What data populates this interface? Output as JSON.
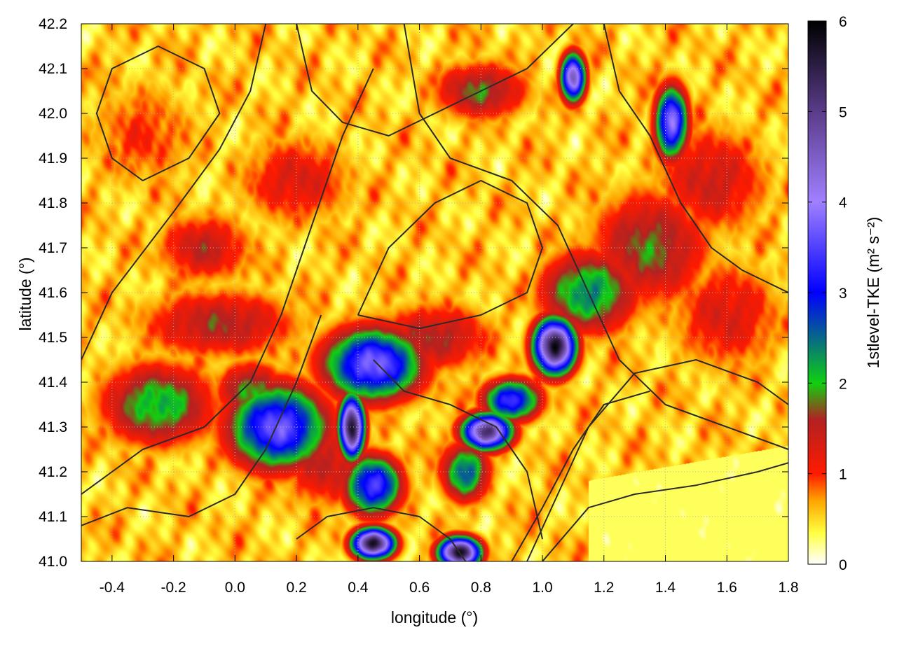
{
  "chart_data": {
    "type": "heatmap",
    "xlabel": "longitude (°)",
    "ylabel": "latitude (°)",
    "colorbar_label": "1stlevel-TKE (m² s⁻²)",
    "xlim": [
      -0.5,
      1.8
    ],
    "ylim": [
      41.0,
      42.2
    ],
    "zlim": [
      0,
      6
    ],
    "x_ticks": [
      "-0.4",
      "-0.2",
      "0.0",
      "0.2",
      "0.4",
      "0.6",
      "0.8",
      "1.0",
      "1.2",
      "1.4",
      "1.6",
      "1.8"
    ],
    "y_ticks": [
      "41.0",
      "41.1",
      "41.2",
      "41.3",
      "41.4",
      "41.5",
      "41.6",
      "41.7",
      "41.8",
      "41.9",
      "42.0",
      "42.1",
      "42.2"
    ],
    "colorbar_ticks": [
      "0",
      "1",
      "2",
      "3",
      "4",
      "5",
      "6"
    ],
    "grid": "dotted",
    "colormap": [
      {
        "value": 0.0,
        "color": "#ffffff"
      },
      {
        "value": 0.35,
        "color": "#ffff40"
      },
      {
        "value": 0.7,
        "color": "#ffa500"
      },
      {
        "value": 1.0,
        "color": "#ff1a00"
      },
      {
        "value": 1.6,
        "color": "#b22222"
      },
      {
        "value": 2.0,
        "color": "#10d010"
      },
      {
        "value": 3.0,
        "color": "#0000ff"
      },
      {
        "value": 4.0,
        "color": "#a080ff"
      },
      {
        "value": 5.0,
        "color": "#5a3c8a"
      },
      {
        "value": 6.0,
        "color": "#000000"
      }
    ],
    "features": [
      {
        "lon": 0.14,
        "lat": 41.3,
        "tke": 3.7,
        "sx": 0.12,
        "sy": 0.07
      },
      {
        "lon": 0.45,
        "lat": 41.44,
        "tke": 3.8,
        "sx": 0.12,
        "sy": 0.06
      },
      {
        "lon": 0.38,
        "lat": 41.3,
        "tke": 5.8,
        "sx": 0.03,
        "sy": 0.05
      },
      {
        "lon": 0.45,
        "lat": 41.17,
        "tke": 3.5,
        "sx": 0.07,
        "sy": 0.05
      },
      {
        "lon": 0.45,
        "lat": 41.04,
        "tke": 5.8,
        "sx": 0.05,
        "sy": 0.025
      },
      {
        "lon": 0.73,
        "lat": 41.02,
        "tke": 5.8,
        "sx": 0.05,
        "sy": 0.025
      },
      {
        "lon": 0.82,
        "lat": 41.29,
        "tke": 5.2,
        "sx": 0.06,
        "sy": 0.03
      },
      {
        "lon": 0.9,
        "lat": 41.36,
        "tke": 3.4,
        "sx": 0.07,
        "sy": 0.035
      },
      {
        "lon": 1.04,
        "lat": 41.48,
        "tke": 5.8,
        "sx": 0.05,
        "sy": 0.045
      },
      {
        "lon": 1.15,
        "lat": 41.6,
        "tke": 2.4,
        "sx": 0.12,
        "sy": 0.07
      },
      {
        "lon": 1.1,
        "lat": 42.08,
        "tke": 4.5,
        "sx": 0.03,
        "sy": 0.04
      },
      {
        "lon": 1.42,
        "lat": 41.98,
        "tke": 3.9,
        "sx": 0.04,
        "sy": 0.06
      },
      {
        "lon": -0.25,
        "lat": 41.35,
        "tke": 2.2,
        "sx": 0.14,
        "sy": 0.07
      },
      {
        "lon": 0.05,
        "lat": 41.38,
        "tke": 2.0,
        "sx": 0.08,
        "sy": 0.05
      },
      {
        "lon": 0.75,
        "lat": 41.2,
        "tke": 2.6,
        "sx": 0.06,
        "sy": 0.05
      },
      {
        "lon": -0.1,
        "lat": 41.7,
        "tke": 1.5,
        "sx": 0.12,
        "sy": 0.06
      },
      {
        "lon": -0.05,
        "lat": 41.53,
        "tke": 1.6,
        "sx": 0.2,
        "sy": 0.06
      },
      {
        "lon": 1.35,
        "lat": 41.7,
        "tke": 1.8,
        "sx": 0.15,
        "sy": 0.1
      },
      {
        "lon": 0.2,
        "lat": 41.85,
        "tke": 1.3,
        "sx": 0.15,
        "sy": 0.08
      },
      {
        "lon": 0.65,
        "lat": 41.5,
        "tke": 1.6,
        "sx": 0.15,
        "sy": 0.06
      },
      {
        "lon": 0.3,
        "lat": 41.22,
        "tke": 1.5,
        "sx": 0.12,
        "sy": 0.08
      },
      {
        "lon": 1.6,
        "lat": 41.55,
        "tke": 1.3,
        "sx": 0.15,
        "sy": 0.1
      },
      {
        "lon": 1.55,
        "lat": 41.85,
        "tke": 1.4,
        "sx": 0.15,
        "sy": 0.1
      },
      {
        "lon": 0.8,
        "lat": 42.05,
        "tke": 1.8,
        "sx": 0.12,
        "sy": 0.05
      },
      {
        "lon": -0.3,
        "lat": 41.95,
        "tke": 1.0,
        "sx": 0.15,
        "sy": 0.1
      }
    ],
    "contours": [
      [
        [
          -0.5,
          41.45
        ],
        [
          -0.4,
          41.6
        ],
        [
          -0.2,
          41.78
        ],
        [
          -0.05,
          41.92
        ],
        [
          0.05,
          42.05
        ],
        [
          0.1,
          42.2
        ]
      ],
      [
        [
          -0.5,
          41.15
        ],
        [
          -0.3,
          41.25
        ],
        [
          -0.1,
          41.3
        ],
        [
          0.05,
          41.4
        ],
        [
          0.15,
          41.55
        ],
        [
          0.25,
          41.75
        ],
        [
          0.35,
          41.95
        ],
        [
          0.45,
          42.1
        ]
      ],
      [
        [
          -0.5,
          41.08
        ],
        [
          -0.35,
          41.12
        ],
        [
          -0.15,
          41.1
        ],
        [
          0.0,
          41.15
        ],
        [
          0.1,
          41.25
        ],
        [
          0.2,
          41.4
        ],
        [
          0.28,
          41.55
        ]
      ],
      [
        [
          0.55,
          42.2
        ],
        [
          0.6,
          42.0
        ],
        [
          0.7,
          41.9
        ],
        [
          0.9,
          41.85
        ],
        [
          1.05,
          41.75
        ],
        [
          1.15,
          41.6
        ],
        [
          1.25,
          41.45
        ],
        [
          1.4,
          41.35
        ],
        [
          1.6,
          41.3
        ],
        [
          1.8,
          41.25
        ]
      ],
      [
        [
          0.95,
          41.0
        ],
        [
          1.05,
          41.15
        ],
        [
          1.15,
          41.3
        ],
        [
          1.3,
          41.42
        ],
        [
          1.5,
          41.45
        ],
        [
          1.7,
          41.4
        ],
        [
          1.8,
          41.35
        ]
      ],
      [
        [
          0.9,
          41.0
        ],
        [
          1.0,
          41.12
        ],
        [
          1.1,
          41.25
        ],
        [
          1.2,
          41.35
        ],
        [
          1.35,
          41.38
        ]
      ],
      [
        [
          1.0,
          41.0
        ],
        [
          1.15,
          41.12
        ],
        [
          1.3,
          41.15
        ],
        [
          1.5,
          41.17
        ],
        [
          1.7,
          41.2
        ],
        [
          1.8,
          41.22
        ]
      ],
      [
        [
          0.4,
          41.55
        ],
        [
          0.5,
          41.7
        ],
        [
          0.65,
          41.8
        ],
        [
          0.8,
          41.85
        ],
        [
          0.95,
          41.8
        ],
        [
          1.0,
          41.7
        ],
        [
          0.95,
          41.6
        ],
        [
          0.8,
          41.55
        ],
        [
          0.6,
          41.52
        ],
        [
          0.4,
          41.55
        ]
      ],
      [
        [
          0.45,
          41.45
        ],
        [
          0.55,
          41.38
        ],
        [
          0.7,
          41.35
        ],
        [
          0.85,
          41.3
        ],
        [
          0.95,
          41.2
        ],
        [
          1.0,
          41.05
        ]
      ],
      [
        [
          0.2,
          42.2
        ],
        [
          0.25,
          42.05
        ],
        [
          0.35,
          41.98
        ],
        [
          0.5,
          41.95
        ],
        [
          0.65,
          42.0
        ],
        [
          0.8,
          42.05
        ],
        [
          0.95,
          42.1
        ],
        [
          1.1,
          42.2
        ]
      ],
      [
        [
          1.2,
          42.2
        ],
        [
          1.25,
          42.05
        ],
        [
          1.35,
          41.95
        ],
        [
          1.45,
          41.8
        ],
        [
          1.55,
          41.7
        ],
        [
          1.65,
          41.65
        ],
        [
          1.8,
          41.6
        ]
      ],
      [
        [
          -0.4,
          41.9
        ],
        [
          -0.3,
          41.85
        ],
        [
          -0.15,
          41.9
        ],
        [
          -0.05,
          42.0
        ],
        [
          -0.1,
          42.1
        ],
        [
          -0.25,
          42.15
        ],
        [
          -0.4,
          42.1
        ],
        [
          -0.45,
          42.0
        ],
        [
          -0.4,
          41.9
        ]
      ],
      [
        [
          0.2,
          41.05
        ],
        [
          0.3,
          41.1
        ],
        [
          0.45,
          41.12
        ],
        [
          0.6,
          41.1
        ],
        [
          0.7,
          41.05
        ],
        [
          0.75,
          41.0
        ]
      ]
    ]
  }
}
